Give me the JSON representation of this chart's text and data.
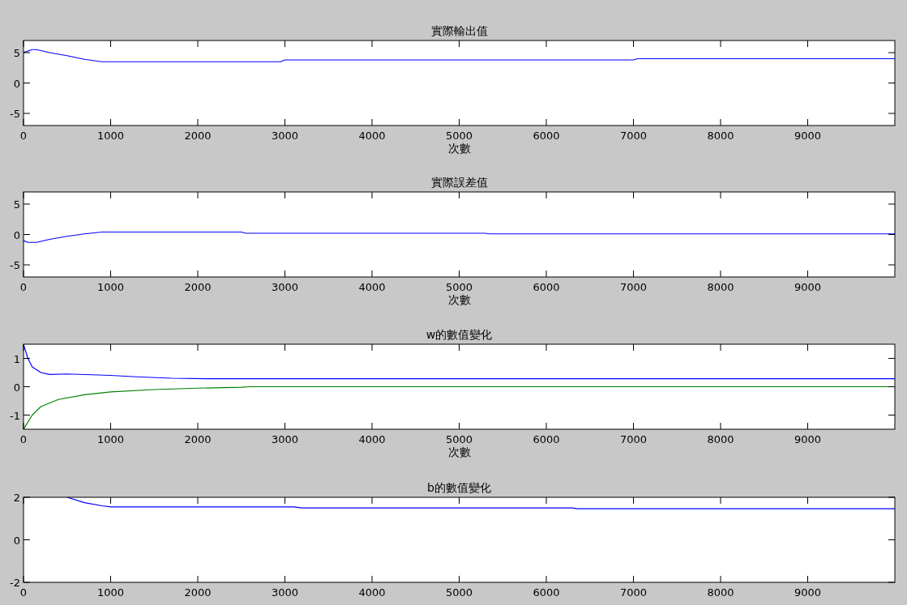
{
  "chart_data": [
    {
      "type": "line",
      "title": "實際輸出值",
      "xlabel": "次數",
      "xlim": [
        0,
        10000
      ],
      "xticks": [
        0,
        1000,
        2000,
        3000,
        4000,
        5000,
        6000,
        7000,
        8000,
        9000
      ],
      "ylim": [
        -7,
        7
      ],
      "yticks": [
        -5,
        0,
        5
      ],
      "series": [
        {
          "color": "#0000ff",
          "x": [
            0,
            100,
            150,
            300,
            500,
            700,
            900,
            2950,
            3000,
            7000,
            7050,
            10000
          ],
          "values": [
            5,
            5.5,
            5.5,
            5,
            4.5,
            3.9,
            3.5,
            3.5,
            3.8,
            3.8,
            4.0,
            4.0
          ]
        }
      ]
    },
    {
      "type": "line",
      "title": "實際誤差值",
      "xlabel": "次數",
      "xlim": [
        0,
        10000
      ],
      "xticks": [
        0,
        1000,
        2000,
        3000,
        4000,
        5000,
        6000,
        7000,
        8000,
        9000
      ],
      "ylim": [
        -7,
        7
      ],
      "yticks": [
        -5,
        0,
        5
      ],
      "series": [
        {
          "color": "#0000ff",
          "x": [
            0,
            50,
            150,
            300,
            500,
            700,
            900,
            2500,
            2550,
            5300,
            5350,
            10000
          ],
          "values": [
            -1,
            -1.3,
            -1.3,
            -0.8,
            -0.3,
            0.1,
            0.4,
            0.4,
            0.2,
            0.2,
            0.1,
            0.1
          ]
        }
      ]
    },
    {
      "type": "line",
      "title": "w的數值變化",
      "xlabel": "次數",
      "xlim": [
        0,
        10000
      ],
      "xticks": [
        0,
        1000,
        2000,
        3000,
        4000,
        5000,
        6000,
        7000,
        8000,
        9000
      ],
      "ylim": [
        -1.5,
        1.5
      ],
      "yticks": [
        -1,
        0,
        1
      ],
      "series": [
        {
          "color": "#0000ff",
          "x": [
            0,
            50,
            100,
            200,
            300,
            500,
            1000,
            1300,
            1700,
            2100,
            10000
          ],
          "values": [
            1.5,
            1.0,
            0.7,
            0.5,
            0.43,
            0.45,
            0.4,
            0.35,
            0.3,
            0.28,
            0.28
          ]
        },
        {
          "color": "#008000",
          "x": [
            0,
            100,
            200,
            400,
            700,
            1000,
            1500,
            2000,
            2500,
            2600,
            10000
          ],
          "values": [
            -1.5,
            -1.0,
            -0.7,
            -0.45,
            -0.28,
            -0.18,
            -0.1,
            -0.05,
            -0.02,
            0,
            0
          ]
        }
      ]
    },
    {
      "type": "line",
      "title": "b的數值變化",
      "xlim": [
        0,
        10000
      ],
      "xticks": [
        0,
        1000,
        2000,
        3000,
        4000,
        5000,
        6000,
        7000,
        8000,
        9000
      ],
      "ylim": [
        -2,
        2
      ],
      "yticks": [
        -2,
        0,
        2
      ],
      "series": [
        {
          "color": "#0000ff",
          "x": [
            500,
            700,
            900,
            1000,
            3100,
            3200,
            6300,
            6350,
            10000
          ],
          "values": [
            2,
            1.75,
            1.6,
            1.55,
            1.55,
            1.5,
            1.5,
            1.46,
            1.46
          ]
        }
      ]
    }
  ]
}
